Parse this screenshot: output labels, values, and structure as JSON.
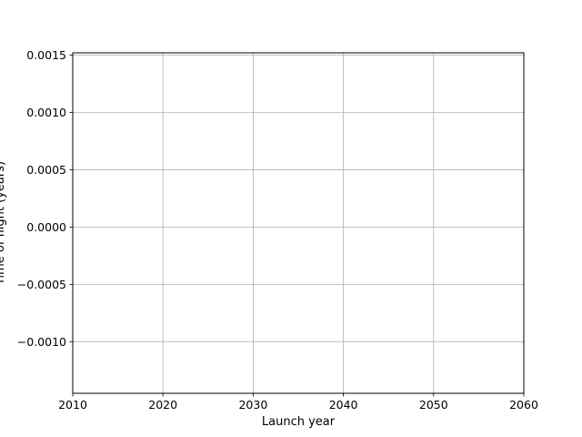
{
  "chart_data": {
    "type": "line",
    "title": "",
    "xlabel": "Launch year",
    "ylabel": "Time of flight (years)",
    "xlim": [
      2010,
      2060
    ],
    "ylim": [
      -0.00145,
      0.00152
    ],
    "x_ticks": [
      2010,
      2020,
      2030,
      2040,
      2050,
      2060
    ],
    "x_tick_labels": [
      "2010",
      "2020",
      "2030",
      "2040",
      "2050",
      "2060"
    ],
    "y_ticks": [
      0.0015,
      0.001,
      0.0005,
      0.0,
      -0.0005,
      -0.001
    ],
    "y_tick_labels": [
      "0.0015",
      "0.0010",
      "0.0005",
      "0.0000",
      "−0.0005",
      "−0.0010"
    ],
    "grid": true,
    "series": [],
    "colors": {
      "grid": "#b0b0b0",
      "axes": "#000000",
      "background": "#ffffff"
    }
  }
}
